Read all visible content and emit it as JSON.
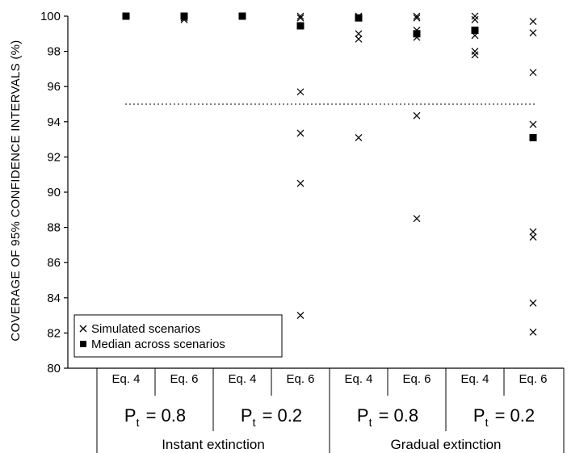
{
  "chart_data": {
    "type": "scatter",
    "ylabel": "COVERAGE OF 95% CONFIDENCE INTERVALS (%)",
    "ylim": [
      80,
      100
    ],
    "yticks": [
      80,
      82,
      84,
      86,
      88,
      90,
      92,
      94,
      96,
      98,
      100
    ],
    "reference_line": 95,
    "categories": [
      "Eq. 4",
      "Eq. 6",
      "Eq. 4",
      "Eq. 6",
      "Eq. 4",
      "Eq. 6",
      "Eq. 4",
      "Eq. 6"
    ],
    "pt_groups": [
      {
        "prefix": "P",
        "sub": "t",
        "value": "= 0.8"
      },
      {
        "prefix": "P",
        "sub": "t",
        "value": "= 0.2"
      },
      {
        "prefix": "P",
        "sub": "t",
        "value": "= 0.8"
      },
      {
        "prefix": "P",
        "sub": "t",
        "value": "= 0.2"
      }
    ],
    "extinction_groups": [
      "Instant extinction",
      "Gradual extinction"
    ],
    "legend": {
      "position": "bottom-left",
      "entries": [
        "Simulated scenarios",
        "Median across scenarios"
      ]
    },
    "series": [
      {
        "name": "Simulated scenarios",
        "marker": "x",
        "values": [
          [
            100,
            100,
            100,
            100,
            100
          ],
          [
            100,
            99.8,
            99.9,
            100
          ],
          [
            100,
            100,
            100,
            100
          ],
          [
            100,
            99.9,
            95.7,
            93.35,
            90.5,
            83.0
          ],
          [
            100,
            99.95,
            99.0,
            98.7,
            93.1
          ],
          [
            100,
            99.9,
            99.2,
            98.8,
            94.35,
            88.5
          ],
          [
            100,
            99.8,
            99.2,
            98.9,
            98.0,
            97.8
          ],
          [
            99.7,
            99.05,
            96.8,
            93.85,
            87.75,
            87.45,
            83.7,
            82.05
          ]
        ]
      },
      {
        "name": "Median across scenarios",
        "marker": "square",
        "values": [
          100,
          100,
          100,
          99.45,
          99.9,
          99.0,
          99.2,
          93.1
        ]
      }
    ]
  }
}
